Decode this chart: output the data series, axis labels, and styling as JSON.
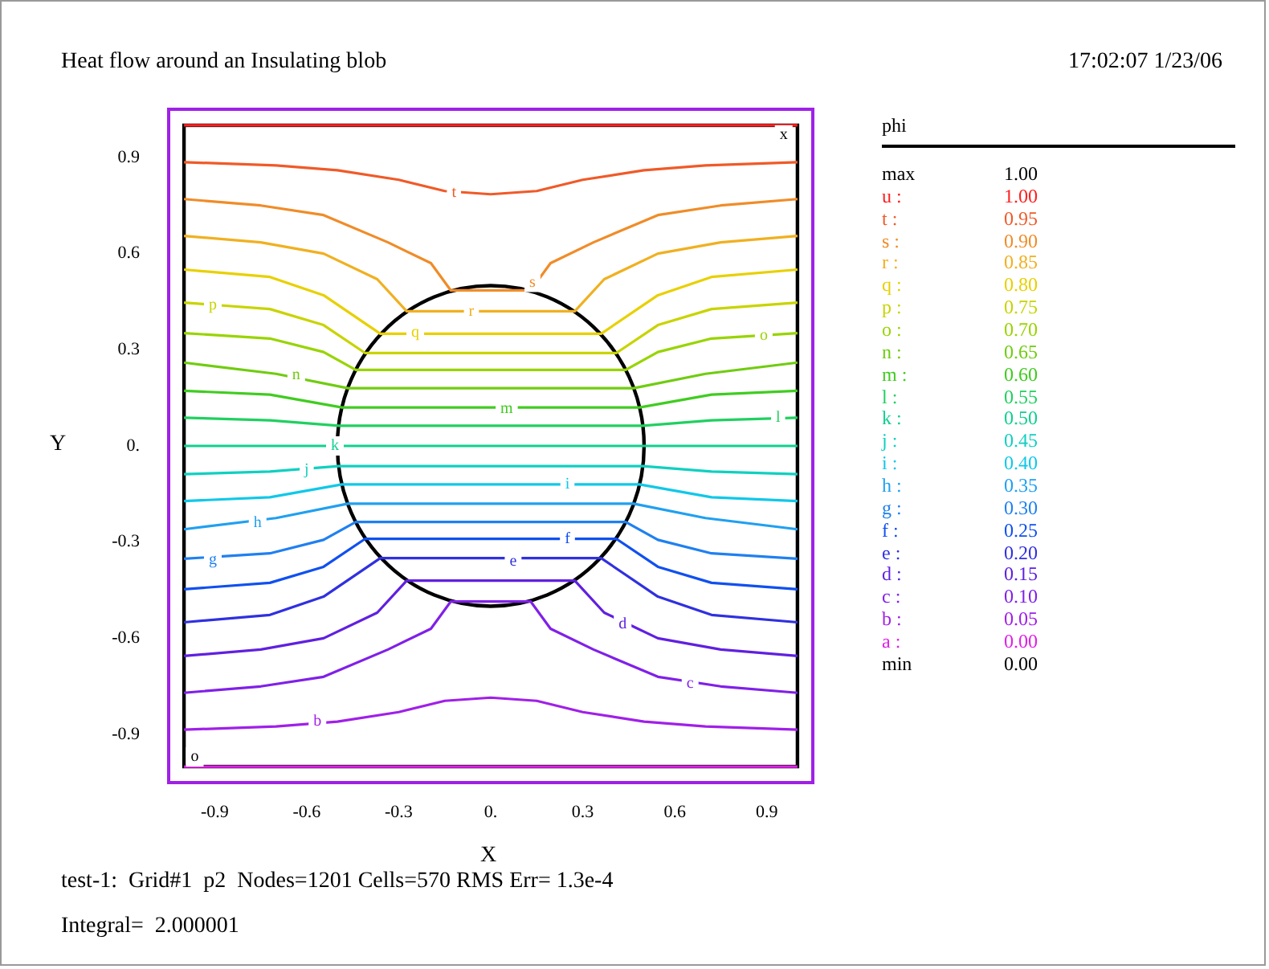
{
  "chart_data": {
    "type": "line",
    "title": "Heat flow around an Insulating blob",
    "xlabel": "X",
    "ylabel": "Y",
    "legend_title": "phi",
    "grid": false,
    "xlim": [
      -1.05,
      1.05
    ],
    "ylim": [
      -1.05,
      1.05
    ],
    "xticks": [
      -0.9,
      -0.6,
      -0.3,
      {
        "value": 0,
        "label": "0."
      },
      0.3,
      0.6,
      0.9
    ],
    "yticks": [
      -0.9,
      -0.6,
      -0.3,
      {
        "value": 0,
        "label": "0."
      },
      0.3,
      0.6,
      0.9
    ],
    "annotations": [
      "17:02:07 1/23/06",
      "max 1.00",
      "min 0.00",
      "test-1:  Grid#1  p2  Nodes=1201 Cells=570 RMS Err= 1.3e-4",
      "Integral=  2.000001",
      {
        "text": "t",
        "x": -0.12,
        "y": 0.79
      },
      {
        "text": "s",
        "x": 0.136,
        "y": 0.51
      },
      {
        "text": "r",
        "x": -0.063,
        "y": 0.42
      },
      {
        "text": "q",
        "x": -0.246,
        "y": 0.355
      },
      {
        "text": "p",
        "x": -0.906,
        "y": 0.44
      },
      {
        "text": "o",
        "x": 0.89,
        "y": 0.345
      },
      {
        "text": "n",
        "x": -0.634,
        "y": 0.22
      },
      {
        "text": "m",
        "x": 0.052,
        "y": 0.115
      },
      {
        "text": "l",
        "x": 0.937,
        "y": 0.088
      },
      {
        "text": "k",
        "x": -0.508,
        "y": 0
      },
      {
        "text": "j",
        "x": -0.6,
        "y": -0.075
      },
      {
        "text": "i",
        "x": 0.25,
        "y": -0.12
      },
      {
        "text": "h",
        "x": -0.76,
        "y": -0.24
      },
      {
        "text": "g",
        "x": -0.906,
        "y": -0.355
      },
      {
        "text": "f",
        "x": 0.25,
        "y": -0.29
      },
      {
        "text": "e",
        "x": 0.073,
        "y": -0.36
      },
      {
        "text": "d",
        "x": 0.43,
        "y": -0.555
      },
      {
        "text": "c",
        "x": 0.65,
        "y": -0.74
      },
      {
        "text": "b",
        "x": -0.565,
        "y": -0.86
      },
      {
        "text": "x",
        "x": 0.955,
        "y": 0.97
      },
      {
        "text": "o",
        "x": -0.965,
        "y": -0.97
      }
    ],
    "series": [
      {
        "name": "u : 1.00",
        "color": "#ff2020",
        "x": [
          -1,
          1
        ],
        "values": [
          1,
          1
        ]
      },
      {
        "name": "t : 0.95",
        "color": "#f05a28",
        "x": [
          -1,
          -0.7,
          -0.5,
          -0.3,
          -0.15,
          0,
          0.15,
          0.3,
          0.5,
          0.7,
          1
        ],
        "values": [
          0.885,
          0.875,
          0.86,
          0.83,
          0.795,
          0.785,
          0.795,
          0.83,
          0.86,
          0.875,
          0.885
        ]
      },
      {
        "name": "s : 0.90",
        "color": "#f08c28",
        "x": [
          -1,
          -0.75,
          -0.545,
          -0.335,
          -0.195,
          -0.13,
          0.13,
          0.195,
          0.335,
          0.545,
          0.75,
          1
        ],
        "values": [
          0.77,
          0.75,
          0.72,
          0.635,
          0.57,
          0.485,
          0.485,
          0.57,
          0.635,
          0.72,
          0.75,
          0.77
        ]
      },
      {
        "name": "r : 0.85",
        "color": "#f0b020",
        "x": [
          -1,
          -0.75,
          -0.545,
          -0.37,
          -0.274,
          0.274,
          0.37,
          0.545,
          0.75,
          1
        ],
        "values": [
          0.655,
          0.635,
          0.6,
          0.52,
          0.42,
          0.42,
          0.52,
          0.6,
          0.635,
          0.655
        ]
      },
      {
        "name": "q : 0.80",
        "color": "#e8d000",
        "x": [
          -1,
          -0.72,
          -0.545,
          -0.36,
          0.36,
          0.545,
          0.72,
          1
        ],
        "values": [
          0.55,
          0.527,
          0.47,
          0.35,
          0.35,
          0.47,
          0.527,
          0.55
        ]
      },
      {
        "name": "p : 0.75",
        "color": "#c8d400",
        "x": [
          -1,
          -0.72,
          -0.545,
          -0.41,
          0.41,
          0.545,
          0.72,
          1
        ],
        "values": [
          0.447,
          0.427,
          0.377,
          0.29,
          0.29,
          0.377,
          0.427,
          0.447
        ]
      },
      {
        "name": "o : 0.70",
        "color": "#98d400",
        "x": [
          -1,
          -0.72,
          -0.545,
          -0.44,
          0.44,
          0.545,
          0.72,
          1
        ],
        "values": [
          0.352,
          0.335,
          0.293,
          0.237,
          0.237,
          0.293,
          0.335,
          0.352
        ]
      },
      {
        "name": "n : 0.65",
        "color": "#70cc10",
        "x": [
          -1,
          -0.7,
          -0.466,
          0.466,
          0.7,
          1
        ],
        "values": [
          0.26,
          0.225,
          0.18,
          0.18,
          0.225,
          0.26
        ]
      },
      {
        "name": "m : 0.60",
        "color": "#40cc20",
        "x": [
          -1,
          -0.72,
          -0.485,
          0.485,
          0.72,
          1
        ],
        "values": [
          0.172,
          0.16,
          0.12,
          0.12,
          0.16,
          0.172
        ]
      },
      {
        "name": "l : 0.55",
        "color": "#20d060",
        "x": [
          -1,
          -0.72,
          -0.496,
          0.496,
          0.72,
          1
        ],
        "values": [
          0.088,
          0.08,
          0.063,
          0.063,
          0.08,
          0.088
        ]
      },
      {
        "name": "k : 0.50",
        "color": "#10d090",
        "x": [
          -1,
          1
        ],
        "values": [
          0,
          0
        ]
      },
      {
        "name": "j : 0.45",
        "color": "#10d0c0",
        "x": [
          -1,
          -0.72,
          -0.496,
          0.496,
          0.72,
          1
        ],
        "values": [
          -0.088,
          -0.08,
          -0.063,
          -0.063,
          -0.08,
          -0.088
        ]
      },
      {
        "name": "i : 0.40",
        "color": "#10c8e8",
        "x": [
          -1,
          -0.72,
          -0.485,
          0.485,
          0.72,
          1
        ],
        "values": [
          -0.172,
          -0.16,
          -0.12,
          -0.12,
          -0.16,
          -0.172
        ]
      },
      {
        "name": "h : 0.35",
        "color": "#20a0f0",
        "x": [
          -1,
          -0.7,
          -0.466,
          0.466,
          0.7,
          1
        ],
        "values": [
          -0.26,
          -0.225,
          -0.18,
          -0.18,
          -0.225,
          -0.26
        ]
      },
      {
        "name": "g : 0.30",
        "color": "#2080f0",
        "x": [
          -1,
          -0.72,
          -0.545,
          -0.44,
          0.44,
          0.545,
          0.72,
          1
        ],
        "values": [
          -0.352,
          -0.335,
          -0.293,
          -0.237,
          -0.237,
          -0.293,
          -0.335,
          -0.352
        ]
      },
      {
        "name": "f : 0.25",
        "color": "#1050f0",
        "x": [
          -1,
          -0.72,
          -0.545,
          -0.41,
          0.41,
          0.545,
          0.72,
          1
        ],
        "values": [
          -0.447,
          -0.427,
          -0.377,
          -0.29,
          -0.29,
          -0.377,
          -0.427,
          -0.447
        ]
      },
      {
        "name": "e : 0.20",
        "color": "#3030e0",
        "x": [
          -1,
          -0.72,
          -0.545,
          -0.36,
          0.36,
          0.545,
          0.72,
          1
        ],
        "values": [
          -0.55,
          -0.527,
          -0.47,
          -0.35,
          -0.35,
          -0.47,
          -0.527,
          -0.55
        ]
      },
      {
        "name": "d : 0.15",
        "color": "#6020e0",
        "x": [
          -1,
          -0.75,
          -0.545,
          -0.37,
          -0.274,
          0.274,
          0.37,
          0.545,
          0.75,
          1
        ],
        "values": [
          -0.655,
          -0.635,
          -0.6,
          -0.52,
          -0.42,
          -0.42,
          -0.52,
          -0.6,
          -0.635,
          -0.655
        ]
      },
      {
        "name": "c : 0.10",
        "color": "#8020e8",
        "x": [
          -1,
          -0.75,
          -0.545,
          -0.335,
          -0.195,
          -0.13,
          0.13,
          0.195,
          0.335,
          0.545,
          0.75,
          1
        ],
        "values": [
          -0.77,
          -0.75,
          -0.72,
          -0.635,
          -0.57,
          -0.485,
          -0.485,
          -0.57,
          -0.635,
          -0.72,
          -0.75,
          -0.77
        ]
      },
      {
        "name": "b : 0.05",
        "color": "#a020e8",
        "x": [
          -1,
          -0.7,
          -0.5,
          -0.3,
          -0.15,
          0,
          0.15,
          0.3,
          0.5,
          0.7,
          1
        ],
        "values": [
          -0.885,
          -0.875,
          -0.86,
          -0.83,
          -0.795,
          -0.785,
          -0.795,
          -0.83,
          -0.86,
          -0.875,
          -0.885
        ]
      },
      {
        "name": "a : 0.00",
        "color": "#e020e8",
        "x": [
          -1,
          1
        ],
        "values": [
          -1,
          -1
        ]
      }
    ]
  }
}
